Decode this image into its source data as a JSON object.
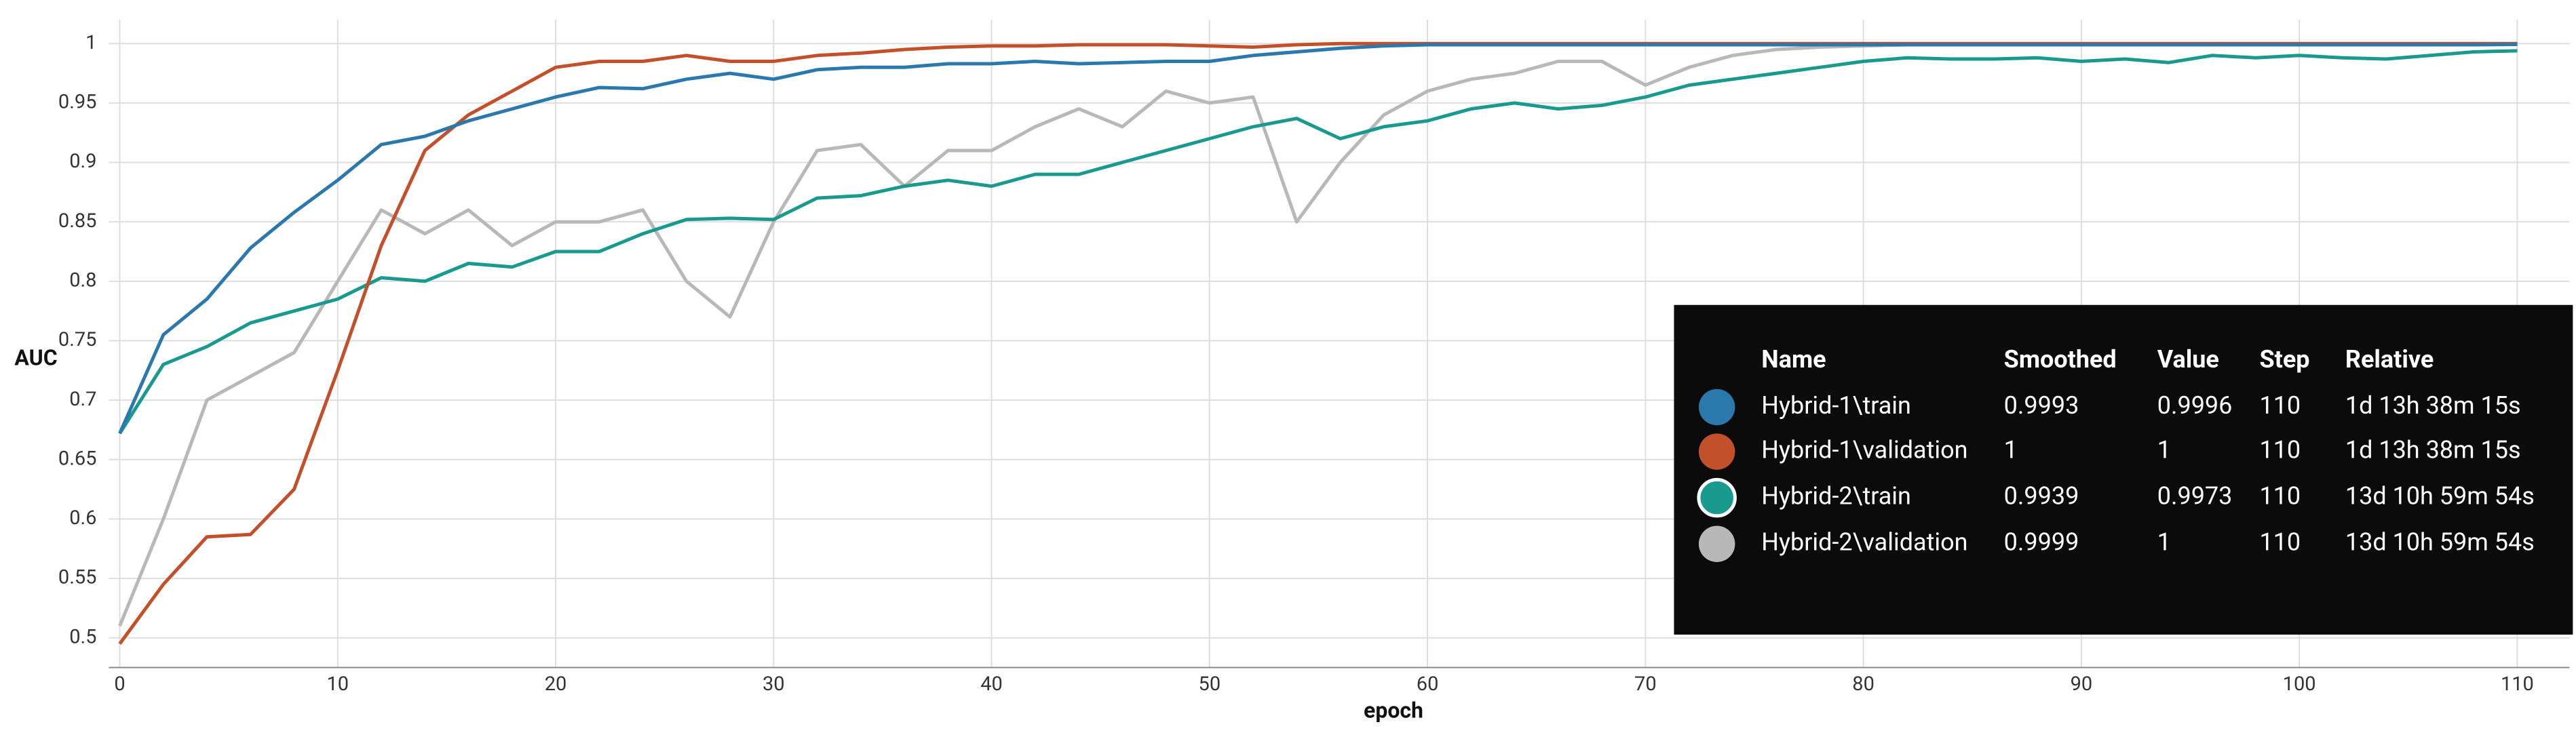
{
  "chart_data": {
    "type": "line",
    "ylabel": "AUC",
    "xlabel": "epoch",
    "xlim": [
      -0.5,
      112.4
    ],
    "ylim": [
      0.475,
      1.02
    ],
    "xticks": [
      0,
      10,
      20,
      30,
      40,
      50,
      60,
      70,
      80,
      90,
      100,
      110
    ],
    "yticks": [
      0.5,
      0.55,
      0.6,
      0.65,
      0.7,
      0.75,
      0.8,
      0.85,
      0.9,
      0.95,
      1
    ],
    "grid": true,
    "legend_position": "lower right",
    "legend_columns": [
      "Name",
      "Smoothed",
      "Value",
      "Step",
      "Relative"
    ],
    "x": [
      0,
      2,
      4,
      6,
      8,
      10,
      12,
      14,
      16,
      18,
      20,
      22,
      24,
      26,
      28,
      30,
      32,
      34,
      36,
      38,
      40,
      42,
      44,
      46,
      48,
      50,
      52,
      54,
      56,
      58,
      60,
      62,
      64,
      66,
      68,
      70,
      72,
      74,
      76,
      78,
      80,
      82,
      84,
      86,
      88,
      90,
      92,
      94,
      96,
      98,
      100,
      102,
      104,
      106,
      108,
      110
    ],
    "series": [
      {
        "name": "Hybrid-1\\train",
        "color": "#2b78ad",
        "smoothed": 0.9993,
        "value": 0.9996,
        "step": 110,
        "relative": "1d 13h 38m 15s",
        "values": [
          0.672,
          0.755,
          0.785,
          0.828,
          0.858,
          0.885,
          0.915,
          0.922,
          0.935,
          0.945,
          0.955,
          0.963,
          0.962,
          0.97,
          0.975,
          0.97,
          0.978,
          0.98,
          0.98,
          0.983,
          0.983,
          0.985,
          0.983,
          0.984,
          0.985,
          0.985,
          0.99,
          0.993,
          0.996,
          0.998,
          0.999,
          0.999,
          0.999,
          0.999,
          0.999,
          0.999,
          0.999,
          0.999,
          0.999,
          0.999,
          0.999,
          0.999,
          0.999,
          0.999,
          0.999,
          0.999,
          0.999,
          0.999,
          0.999,
          0.999,
          0.999,
          0.999,
          0.999,
          0.999,
          0.999,
          0.9993
        ]
      },
      {
        "name": "Hybrid-1\\validation",
        "color": "#c2502a",
        "smoothed": 1,
        "value": 1,
        "step": 110,
        "relative": "1d 13h 38m 15s",
        "values": [
          0.495,
          0.545,
          0.585,
          0.587,
          0.625,
          0.725,
          0.83,
          0.91,
          0.94,
          0.96,
          0.98,
          0.985,
          0.985,
          0.99,
          0.985,
          0.985,
          0.99,
          0.992,
          0.995,
          0.997,
          0.998,
          0.998,
          0.999,
          0.999,
          0.999,
          0.998,
          0.997,
          0.999,
          1,
          1,
          1,
          1,
          1,
          1,
          1,
          1,
          1,
          1,
          1,
          1,
          1,
          1,
          1,
          1,
          1,
          1,
          1,
          1,
          1,
          1,
          1,
          1,
          1,
          1,
          1,
          1
        ]
      },
      {
        "name": "Hybrid-2\\train",
        "color": "#1a9a8f",
        "smoothed": 0.9939,
        "value": 0.9973,
        "step": 110,
        "relative": "13d 10h 59m 54s",
        "values": [
          0.672,
          0.73,
          0.745,
          0.765,
          0.775,
          0.785,
          0.803,
          0.8,
          0.815,
          0.812,
          0.825,
          0.825,
          0.84,
          0.852,
          0.853,
          0.852,
          0.87,
          0.872,
          0.88,
          0.885,
          0.88,
          0.89,
          0.89,
          0.9,
          0.91,
          0.92,
          0.93,
          0.937,
          0.92,
          0.93,
          0.935,
          0.945,
          0.95,
          0.945,
          0.948,
          0.955,
          0.965,
          0.97,
          0.975,
          0.98,
          0.985,
          0.988,
          0.987,
          0.987,
          0.988,
          0.985,
          0.987,
          0.984,
          0.99,
          0.988,
          0.99,
          0.988,
          0.987,
          0.99,
          0.993,
          0.9939
        ]
      },
      {
        "name": "Hybrid-2\\validation",
        "color": "#b8b8b8",
        "smoothed": 0.9999,
        "value": 1,
        "step": 110,
        "relative": "13d 10h 59m 54s",
        "values": [
          0.51,
          0.6,
          0.7,
          0.72,
          0.74,
          0.8,
          0.86,
          0.84,
          0.86,
          0.83,
          0.85,
          0.85,
          0.86,
          0.8,
          0.77,
          0.85,
          0.91,
          0.915,
          0.88,
          0.91,
          0.91,
          0.93,
          0.945,
          0.93,
          0.96,
          0.95,
          0.955,
          0.85,
          0.9,
          0.94,
          0.96,
          0.97,
          0.975,
          0.985,
          0.985,
          0.965,
          0.98,
          0.99,
          0.995,
          0.997,
          0.998,
          0.999,
          0.999,
          0.999,
          0.999,
          0.999,
          0.999,
          0.999,
          0.999,
          0.999,
          0.999,
          0.999,
          0.999,
          0.999,
          0.999,
          0.9999
        ]
      }
    ]
  }
}
